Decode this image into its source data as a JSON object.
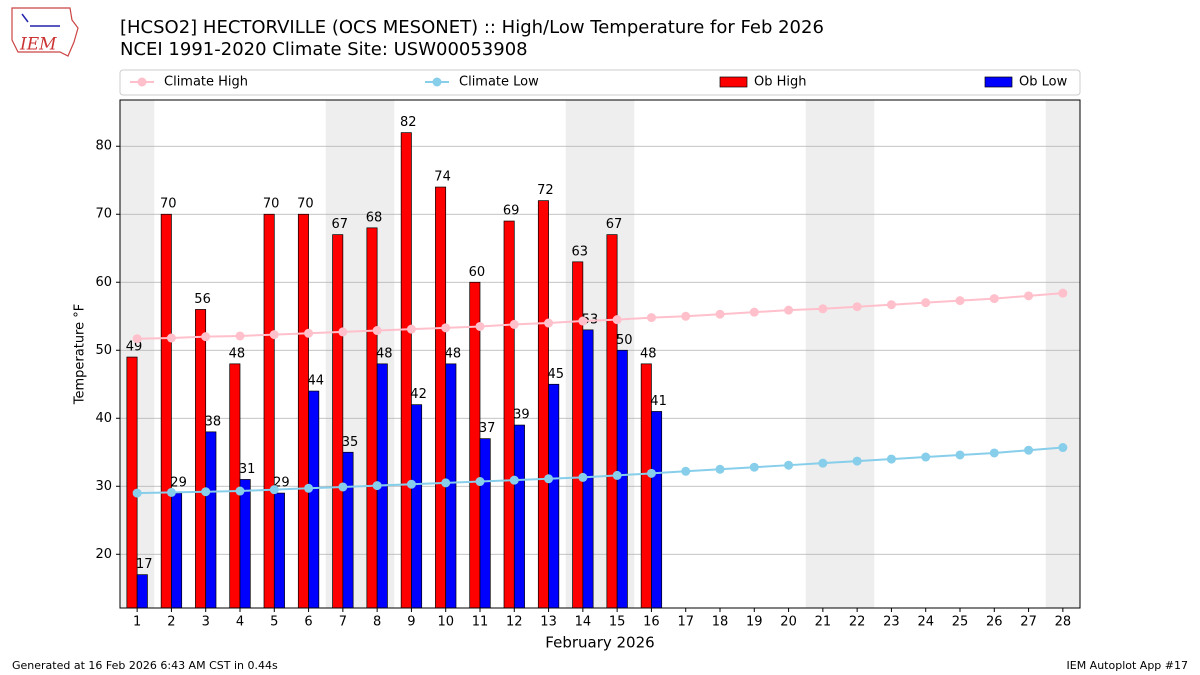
{
  "chart_data": {
    "type": "bar",
    "title": "[HCSO2] HECTORVILLE (OCS MESONET) :: High/Low Temperature for Feb 2026",
    "subtitle": "NCEI 1991-2020 Climate Site: USW00053908",
    "logo_text": "IEM",
    "xlabel": "February 2026",
    "ylabel": "Temperature °F",
    "footer_left": "Generated at 16 Feb 2026 6:43 AM CST in 0.44s",
    "footer_right": "IEM Autoplot App #17",
    "x": [
      1,
      2,
      3,
      4,
      5,
      6,
      7,
      8,
      9,
      10,
      11,
      12,
      13,
      14,
      15,
      16,
      17,
      18,
      19,
      20,
      21,
      22,
      23,
      24,
      25,
      26,
      27,
      28
    ],
    "xlim": [
      0.5,
      28.5
    ],
    "ylim": [
      12.1,
      86.8
    ],
    "yticks": [
      20,
      30,
      40,
      50,
      60,
      70,
      80
    ],
    "grid": true,
    "shaded_days": [
      1,
      7,
      8,
      14,
      15,
      21,
      22,
      28
    ],
    "series": [
      {
        "name": "Climate High",
        "kind": "line",
        "color": "#ffc0cb",
        "values": [
          51.7,
          51.8,
          52.0,
          52.1,
          52.3,
          52.5,
          52.7,
          52.9,
          53.1,
          53.3,
          53.5,
          53.8,
          54.0,
          54.3,
          54.5,
          54.8,
          55.0,
          55.3,
          55.6,
          55.9,
          56.1,
          56.4,
          56.7,
          57.0,
          57.3,
          57.6,
          58.0,
          58.4
        ]
      },
      {
        "name": "Climate Low",
        "kind": "line",
        "color": "#87ceeb",
        "values": [
          29.0,
          29.1,
          29.2,
          29.3,
          29.5,
          29.7,
          29.9,
          30.1,
          30.3,
          30.5,
          30.7,
          30.9,
          31.1,
          31.3,
          31.6,
          31.9,
          32.2,
          32.5,
          32.8,
          33.1,
          33.4,
          33.7,
          34.0,
          34.3,
          34.6,
          34.9,
          35.3,
          35.7
        ]
      },
      {
        "name": "Ob High",
        "kind": "bar",
        "color": "#ff0000",
        "values": [
          49,
          70,
          56,
          48,
          70,
          70,
          67,
          68,
          82,
          74,
          60,
          69,
          72,
          63,
          67,
          48,
          null,
          null,
          null,
          null,
          null,
          null,
          null,
          null,
          null,
          null,
          null,
          null
        ]
      },
      {
        "name": "Ob Low",
        "kind": "bar",
        "color": "#0000ff",
        "values": [
          17,
          29,
          38,
          31,
          29,
          44,
          35,
          48,
          42,
          48,
          37,
          39,
          45,
          53,
          50,
          41,
          null,
          null,
          null,
          null,
          null,
          null,
          null,
          null,
          null,
          null,
          null,
          null
        ]
      }
    ]
  }
}
